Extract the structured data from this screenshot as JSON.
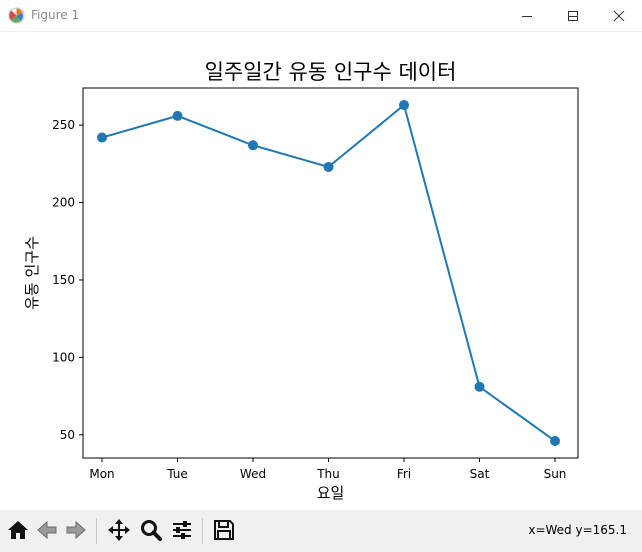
{
  "window": {
    "title": "Figure 1"
  },
  "chart_data": {
    "type": "line",
    "title": "일주일간 유동 인구수 데이터",
    "xlabel": "요일",
    "ylabel": "유동 인구수",
    "categories": [
      "Mon",
      "Tue",
      "Wed",
      "Thu",
      "Fri",
      "Sat",
      "Sun"
    ],
    "values": [
      242,
      256,
      237,
      223,
      263,
      81,
      46
    ],
    "yticks": [
      50,
      100,
      150,
      200,
      250
    ],
    "ylim": [
      35,
      274
    ],
    "color": "#1f77b4",
    "marker": "circle",
    "grid": false
  },
  "toolbar": {
    "coords": "x=Wed y=165.1"
  },
  "icons": {
    "app": "matplotlib-icon",
    "minimize": "minimize-icon",
    "maximize": "maximize-icon",
    "close": "close-icon",
    "home": "home-icon",
    "back": "back-arrow-icon",
    "forward": "forward-arrow-icon",
    "pan": "pan-move-icon",
    "zoom": "zoom-magnifier-icon",
    "configure": "configure-subplots-icon",
    "save": "save-floppy-icon"
  }
}
